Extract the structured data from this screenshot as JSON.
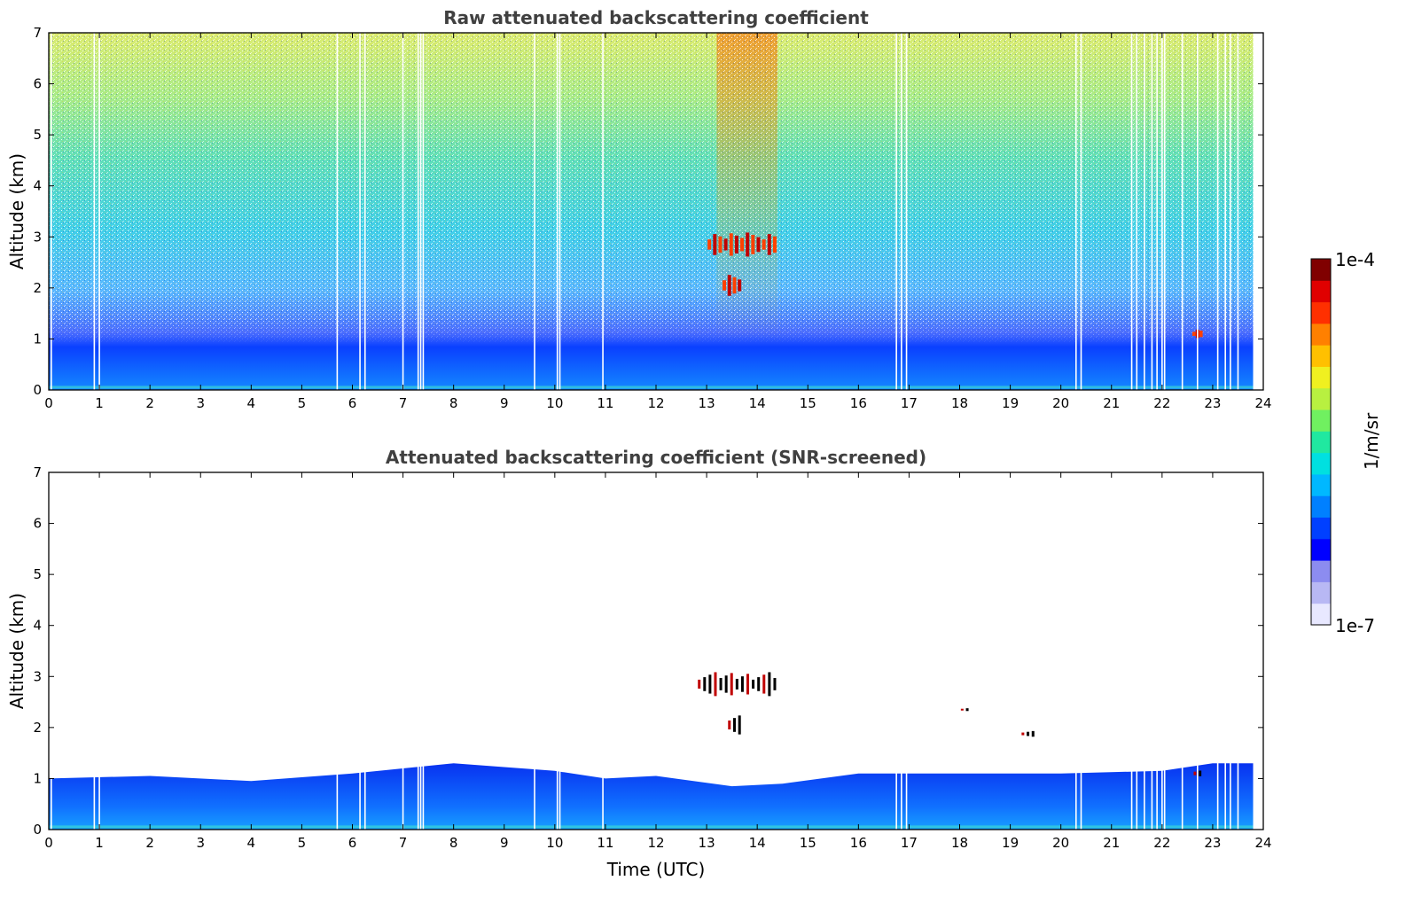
{
  "chart_data": [
    {
      "type": "heatmap",
      "title": "Raw attenuated backscattering coefficient",
      "xlabel": "",
      "ylabel": "Altitude (km)",
      "xlim": [
        0,
        24
      ],
      "ylim": [
        0,
        7
      ],
      "x_ticks": [
        "0",
        "1",
        "2",
        "3",
        "4",
        "5",
        "6",
        "7",
        "8",
        "9",
        "10",
        "11",
        "12",
        "13",
        "14",
        "15",
        "16",
        "17",
        "18",
        "19",
        "20",
        "21",
        "22",
        "23",
        "24"
      ],
      "y_ticks": [
        "0",
        "1",
        "2",
        "3",
        "4",
        "5",
        "6",
        "7"
      ],
      "data_end_time": 23.8,
      "features": [
        {
          "kind": "boundary_layer",
          "description": "dense blue backscatter layer",
          "altitude_km": [
            0,
            1.0
          ],
          "time_utc": [
            0,
            23.8
          ]
        },
        {
          "kind": "noise_increase",
          "description": "noise rises with altitude toward yellow/red near top",
          "altitude_km": [
            1.0,
            7.0
          ]
        },
        {
          "kind": "cloud",
          "time_utc": [
            13.0,
            14.4
          ],
          "altitude_km": [
            2.6,
            3.1
          ]
        },
        {
          "kind": "cloud",
          "time_utc": [
            13.3,
            13.7
          ],
          "altitude_km": [
            1.8,
            2.3
          ]
        },
        {
          "kind": "cloud",
          "time_utc": [
            22.6,
            22.8
          ],
          "altitude_km": [
            1.0,
            1.2
          ]
        }
      ]
    },
    {
      "type": "heatmap",
      "title": "Attenuated backscattering coefficient (SNR-screened)",
      "xlabel": "Time (UTC)",
      "ylabel": "Altitude (km)",
      "xlim": [
        0,
        24
      ],
      "ylim": [
        0,
        7
      ],
      "x_ticks": [
        "0",
        "1",
        "2",
        "3",
        "4",
        "5",
        "6",
        "7",
        "8",
        "9",
        "10",
        "11",
        "12",
        "13",
        "14",
        "15",
        "16",
        "17",
        "18",
        "19",
        "20",
        "21",
        "22",
        "23",
        "24"
      ],
      "y_ticks": [
        "0",
        "1",
        "2",
        "3",
        "4",
        "5",
        "6",
        "7"
      ],
      "data_end_time": 23.8,
      "boundary_layer_top_km": [
        [
          0,
          1.0
        ],
        [
          2,
          1.05
        ],
        [
          4,
          0.95
        ],
        [
          6,
          1.1
        ],
        [
          8,
          1.3
        ],
        [
          10,
          1.15
        ],
        [
          11,
          1.0
        ],
        [
          12,
          1.05
        ],
        [
          13.5,
          0.85
        ],
        [
          14.5,
          0.9
        ],
        [
          16,
          1.1
        ],
        [
          18,
          1.1
        ],
        [
          20,
          1.1
        ],
        [
          22,
          1.15
        ],
        [
          23,
          1.3
        ],
        [
          23.8,
          1.3
        ]
      ],
      "features": [
        {
          "kind": "cloud",
          "time_utc": [
            12.8,
            14.4
          ],
          "altitude_km": [
            2.6,
            3.1
          ]
        },
        {
          "kind": "cloud",
          "time_utc": [
            13.4,
            13.7
          ],
          "altitude_km": [
            1.8,
            2.3
          ]
        },
        {
          "kind": "cloud",
          "time_utc": [
            18.0,
            18.2
          ],
          "altitude_km": [
            2.3,
            2.4
          ]
        },
        {
          "kind": "cloud",
          "time_utc": [
            19.2,
            19.5
          ],
          "altitude_km": [
            1.8,
            1.95
          ]
        },
        {
          "kind": "cloud",
          "time_utc": [
            22.6,
            22.8
          ],
          "altitude_km": [
            1.0,
            1.2
          ]
        }
      ]
    }
  ],
  "colorbar": {
    "label": "1/m/sr",
    "max_label": "1e-4",
    "min_label": "1e-7",
    "scale": "log",
    "colors": [
      "#e8e8ff",
      "#b8b8f4",
      "#8c8cf0",
      "#0000ff",
      "#0040ff",
      "#0080ff",
      "#00b8ff",
      "#00e0e0",
      "#20e8a0",
      "#70f060",
      "#b8f040",
      "#f0f020",
      "#ffc000",
      "#ff8000",
      "#ff3000",
      "#e00000",
      "#800000"
    ]
  },
  "gap_times_utc": [
    0.05,
    0.9,
    1.0,
    5.7,
    6.15,
    6.25,
    7.0,
    7.3,
    7.35,
    7.4,
    9.6,
    10.05,
    10.1,
    10.95,
    16.75,
    16.85,
    16.95,
    20.3,
    20.4,
    21.4,
    21.5,
    21.65,
    21.8,
    21.9,
    22.0,
    22.05,
    22.4,
    22.7,
    23.1,
    23.25,
    23.35,
    23.5
  ]
}
